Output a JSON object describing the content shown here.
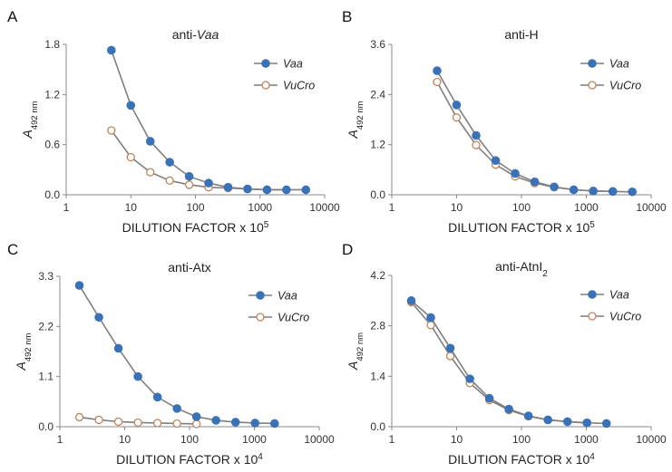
{
  "chart_data": [
    {
      "type": "line",
      "panel": "A",
      "title": "anti-Vaa",
      "title_plain": "anti-",
      "title_italic": "Vaa",
      "title_sub": "",
      "xlabel": "DILUTION FACTOR x 10",
      "xlabel_exp": "5",
      "ylabel": "A",
      "ylabel_sub": "492 nm",
      "x_scale": "log",
      "xlim": [
        1,
        10000
      ],
      "x_ticks": [
        1,
        10,
        100,
        1000,
        10000
      ],
      "x_tick_labels": [
        "1",
        "10",
        "100",
        "1000",
        "10000"
      ],
      "ylim": [
        0,
        1.8
      ],
      "y_ticks": [
        0,
        0.6,
        1.2,
        1.8
      ],
      "y_tick_labels": [
        "0.0",
        "0.6",
        "1.2",
        "1.8"
      ],
      "grid": false,
      "legend_position": "top-right",
      "series": [
        {
          "name": "Vaa",
          "marker": "filled-circle",
          "color": "#3a72b8",
          "x": [
            5,
            10,
            20,
            40,
            80,
            160,
            320,
            640,
            1280,
            2560,
            5120
          ],
          "y": [
            1.73,
            1.07,
            0.64,
            0.39,
            0.22,
            0.14,
            0.09,
            0.07,
            0.06,
            0.06,
            0.06
          ]
        },
        {
          "name": "VuCro",
          "marker": "open-circle",
          "color": "#c0845a",
          "x": [
            5,
            10,
            20,
            40,
            80,
            160,
            320,
            640,
            1280,
            2560
          ],
          "y": [
            0.77,
            0.45,
            0.27,
            0.17,
            0.12,
            0.09,
            0.08,
            0.07,
            0.06,
            0.06
          ]
        }
      ]
    },
    {
      "type": "line",
      "panel": "B",
      "title": "anti-H",
      "title_plain": "anti-H",
      "title_italic": "",
      "title_sub": "",
      "xlabel": "DILUTION FACTOR x 10",
      "xlabel_exp": "5",
      "ylabel": "A",
      "ylabel_sub": "492 nm",
      "x_scale": "log",
      "xlim": [
        1,
        10000
      ],
      "x_ticks": [
        1,
        10,
        100,
        1000,
        10000
      ],
      "x_tick_labels": [
        "1",
        "10",
        "100",
        "1000",
        "10000"
      ],
      "ylim": [
        0,
        3.6
      ],
      "y_ticks": [
        0,
        1.2,
        2.4,
        3.6
      ],
      "y_tick_labels": [
        "0.0",
        "1.2",
        "2.4",
        "3.6"
      ],
      "grid": false,
      "legend_position": "top-right",
      "series": [
        {
          "name": "Vaa",
          "marker": "filled-circle",
          "color": "#3a72b8",
          "x": [
            5,
            10,
            20,
            40,
            80,
            160,
            320,
            640,
            1280,
            2560,
            5120
          ],
          "y": [
            2.97,
            2.15,
            1.42,
            0.82,
            0.51,
            0.31,
            0.19,
            0.12,
            0.09,
            0.08,
            0.07
          ]
        },
        {
          "name": "VuCro",
          "marker": "open-circle",
          "color": "#c0845a",
          "x": [
            5,
            10,
            20,
            40,
            80,
            160,
            320,
            640,
            1280,
            2560
          ],
          "y": [
            2.7,
            1.85,
            1.19,
            0.72,
            0.44,
            0.28,
            0.18,
            0.12,
            0.09,
            0.08
          ]
        }
      ]
    },
    {
      "type": "line",
      "panel": "C",
      "title": "anti-Atx",
      "title_plain": "anti-Atx",
      "title_italic": "",
      "title_sub": "",
      "xlabel": "DILUTION FACTOR x 10",
      "xlabel_exp": "4",
      "ylabel": "A",
      "ylabel_sub": "492 nm",
      "x_scale": "log",
      "xlim": [
        1,
        10000
      ],
      "x_ticks": [
        1,
        10,
        100,
        1000,
        10000
      ],
      "x_tick_labels": [
        "1",
        "10",
        "100",
        "1000",
        "10000"
      ],
      "ylim": [
        0,
        3.3
      ],
      "y_ticks": [
        0,
        1.1,
        2.2,
        3.3
      ],
      "y_tick_labels": [
        "0.0",
        "1.1",
        "2.2",
        "3.3"
      ],
      "grid": false,
      "legend_position": "top-right",
      "series": [
        {
          "name": "Vaa",
          "marker": "filled-circle",
          "color": "#3a72b8",
          "x": [
            2,
            4,
            8,
            16,
            32,
            64,
            128,
            256,
            512,
            1024,
            2048
          ],
          "y": [
            3.1,
            2.4,
            1.72,
            1.1,
            0.65,
            0.4,
            0.22,
            0.14,
            0.1,
            0.08,
            0.07
          ]
        },
        {
          "name": "VuCro",
          "marker": "open-circle",
          "color": "#c0845a",
          "x": [
            2,
            4,
            8,
            16,
            32,
            64,
            128
          ],
          "y": [
            0.21,
            0.15,
            0.11,
            0.09,
            0.08,
            0.07,
            0.06
          ]
        }
      ]
    },
    {
      "type": "line",
      "panel": "D",
      "title": "anti-AtnI2",
      "title_plain": "anti-AtnI",
      "title_italic": "",
      "title_sub": "2",
      "xlabel": "DILUTION FACTOR x 10",
      "xlabel_exp": "4",
      "ylabel": "A",
      "ylabel_sub": "492 nm",
      "x_scale": "log",
      "xlim": [
        1,
        10000
      ],
      "x_ticks": [
        1,
        10,
        100,
        1000,
        10000
      ],
      "x_tick_labels": [
        "1",
        "10",
        "100",
        "1000",
        "10000"
      ],
      "ylim": [
        0,
        4.2
      ],
      "y_ticks": [
        0,
        1.4,
        2.8,
        4.2
      ],
      "y_tick_labels": [
        "0.0",
        "1.4",
        "2.8",
        "4.2"
      ],
      "grid": false,
      "legend_position": "top-right",
      "series": [
        {
          "name": "Vaa",
          "marker": "filled-circle",
          "color": "#3a72b8",
          "x": [
            2,
            4,
            8,
            16,
            32,
            64,
            128,
            256,
            512,
            1024,
            2048
          ],
          "y": [
            3.5,
            3.03,
            2.18,
            1.33,
            0.79,
            0.49,
            0.3,
            0.19,
            0.14,
            0.11,
            0.09
          ]
        },
        {
          "name": "VuCro",
          "marker": "open-circle",
          "color": "#c0845a",
          "x": [
            2,
            4,
            8,
            16,
            32,
            64,
            128,
            256,
            512,
            1024
          ],
          "y": [
            3.46,
            2.82,
            1.96,
            1.21,
            0.74,
            0.46,
            0.29,
            0.19,
            0.14,
            0.1
          ]
        }
      ]
    }
  ]
}
